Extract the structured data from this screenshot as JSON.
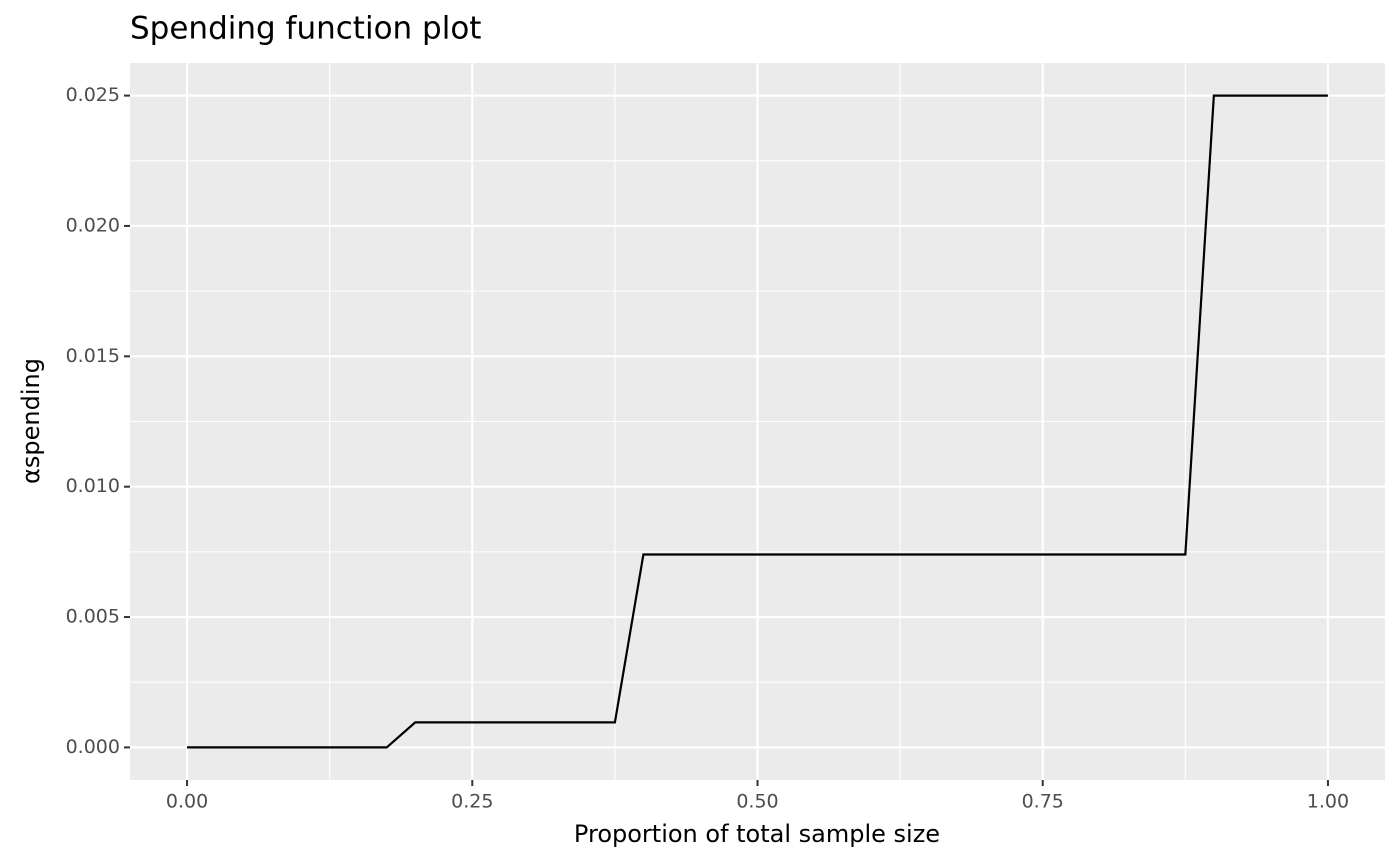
{
  "chart_data": {
    "type": "line",
    "title": "Spending function plot",
    "x_label": "Proportion of total sample size",
    "y_label": "αspending",
    "series": [
      {
        "name": null,
        "color": "#000000",
        "x": [
          0,
          0.175,
          0.2,
          0.375,
          0.4,
          0.875,
          0.9,
          1.0
        ],
        "values": [
          0,
          0,
          0.00096,
          0.00096,
          0.0074,
          0.0074,
          0.025,
          0.025
        ]
      }
    ],
    "xlim": [
      -0.05,
      1.05
    ],
    "ylim": [
      -0.00125,
      0.02625
    ],
    "xticks": [
      {
        "value": 0,
        "label": "0.00"
      },
      {
        "value": 0.25,
        "label": "0.25"
      },
      {
        "value": 0.5,
        "label": "0.50"
      },
      {
        "value": 0.75,
        "label": "0.75"
      },
      {
        "value": 1,
        "label": "1.00"
      }
    ],
    "yticks": [
      {
        "value": 0,
        "label": "0.000"
      },
      {
        "value": 0.005,
        "label": "0.005"
      },
      {
        "value": 0.01,
        "label": "0.010"
      },
      {
        "value": 0.015,
        "label": "0.015"
      },
      {
        "value": 0.02,
        "label": "0.020"
      },
      {
        "value": 0.025,
        "label": "0.025"
      }
    ],
    "grid": true
  }
}
